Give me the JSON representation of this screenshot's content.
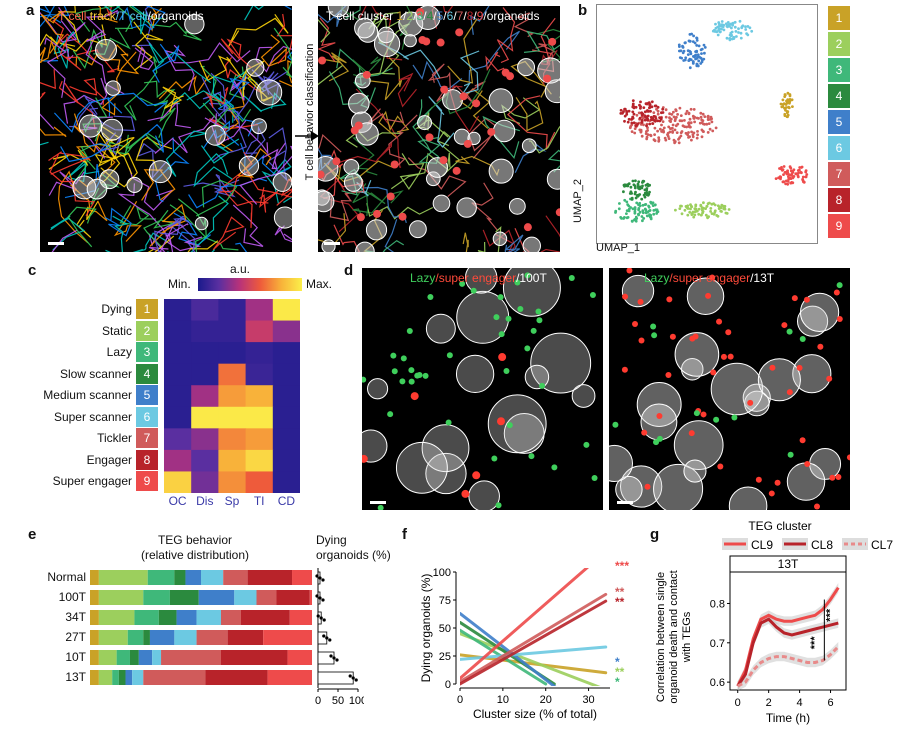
{
  "colors": {
    "c1": "#c9a227",
    "c2": "#9ccf5d",
    "c3": "#3fb87a",
    "c4": "#2b8a3e",
    "c5": "#3f7fca",
    "c6": "#6cc9e2",
    "c7": "#d05b5b",
    "c8": "#b8232a",
    "c9": "#ee4b4b"
  },
  "panel_a": {
    "label": "a",
    "left_title": "T cell track/T cell/organoids",
    "left_title_parts": [
      "T cell",
      " track",
      "/T cell",
      "/organoids"
    ],
    "arrow_label": "T cell behavior classification",
    "right_title_prefix": "T cell cluster ",
    "right_title_numbers": [
      "1",
      "2",
      "3",
      "4",
      "5",
      "6",
      "7",
      "8",
      "9"
    ],
    "right_title_suffix": "/organoids"
  },
  "panel_b": {
    "label": "b",
    "xlabel": "UMAP_1",
    "ylabel": "UMAP_2",
    "clusters": [
      "1",
      "2",
      "3",
      "4",
      "5",
      "6",
      "7",
      "8",
      "9"
    ]
  },
  "panel_c": {
    "label": "c",
    "scale_title": "a.u.",
    "scale_min": "Min.",
    "scale_max": "Max.",
    "rows": [
      "Dying",
      "Static",
      "Lazy",
      "Slow scanner",
      "Medium scanner",
      "Super scanner",
      "Tickler",
      "Engager",
      "Super engager"
    ],
    "numbers": [
      "1",
      "2",
      "3",
      "4",
      "5",
      "6",
      "7",
      "8",
      "9"
    ],
    "cols": [
      "OC",
      "Dis",
      "Sp",
      "TI",
      "CD"
    ]
  },
  "panel_d": {
    "label": "d",
    "left_title_parts": [
      "Lazy",
      "/super engager",
      "/100T"
    ],
    "right_title_parts": [
      "Lazy",
      "/super engager",
      "/13T"
    ]
  },
  "panel_e": {
    "label": "e",
    "title1": "TEG behavior",
    "title2": "(relative distribution)",
    "dying_title1": "Dying",
    "dying_title2": "organoids (%)",
    "rows": [
      "Normal",
      "100T",
      "34T",
      "27T",
      "10T",
      "13T"
    ],
    "x_ticks": [
      "0",
      "50",
      "100"
    ]
  },
  "panel_f": {
    "label": "f",
    "xlabel": "Cluster size (% of total)",
    "ylabel": "Dying organoids (%)",
    "sig": [
      "***",
      "**",
      "**",
      "*",
      "**",
      "*"
    ]
  },
  "panel_g": {
    "label": "g",
    "legend_title": "TEG cluster",
    "legend": [
      "CL9",
      "CL8",
      "CL7"
    ],
    "facet": "13T",
    "xlabel": "Time (h)",
    "ylabel_lines": [
      "Correlation between single",
      "organoid death and contact",
      "with TEGs"
    ],
    "sig": [
      "***",
      "***"
    ]
  },
  "chart_data": [
    {
      "type": "heatmap",
      "panel": "c",
      "rows": [
        "Dying",
        "Static",
        "Lazy",
        "Slow scanner",
        "Medium scanner",
        "Super scanner",
        "Tickler",
        "Engager",
        "Super engager"
      ],
      "cols": [
        "OC",
        "Dis",
        "Sp",
        "TI",
        "CD"
      ],
      "values": [
        [
          0.05,
          0.15,
          0.08,
          0.35,
          0.98
        ],
        [
          0.05,
          0.08,
          0.08,
          0.45,
          0.3
        ],
        [
          0.05,
          0.05,
          0.05,
          0.08,
          0.05
        ],
        [
          0.05,
          0.05,
          0.65,
          0.1,
          0.05
        ],
        [
          0.05,
          0.35,
          0.75,
          0.8,
          0.05
        ],
        [
          0.05,
          0.98,
          0.98,
          0.98,
          0.05
        ],
        [
          0.2,
          0.3,
          0.7,
          0.75,
          0.05
        ],
        [
          0.35,
          0.2,
          0.8,
          0.92,
          0.05
        ],
        [
          0.9,
          0.25,
          0.72,
          0.6,
          0.05
        ]
      ],
      "legend_min": "Min.",
      "legend_max": "Max."
    },
    {
      "type": "bar",
      "panel": "e",
      "stacked": true,
      "orientation": "horizontal",
      "categories": [
        "Normal",
        "100T",
        "34T",
        "27T",
        "10T",
        "13T"
      ],
      "series": [
        {
          "name": "1",
          "values": [
            4,
            4,
            4,
            4,
            4,
            4
          ]
        },
        {
          "name": "2",
          "values": [
            22,
            20,
            16,
            13,
            8,
            6
          ]
        },
        {
          "name": "3",
          "values": [
            12,
            12,
            11,
            7,
            6,
            3
          ]
        },
        {
          "name": "4",
          "values": [
            5,
            13,
            8,
            3,
            4,
            3
          ]
        },
        {
          "name": "5",
          "values": [
            7,
            16,
            9,
            11,
            6,
            3
          ]
        },
        {
          "name": "6",
          "values": [
            10,
            10,
            11,
            10,
            4,
            5
          ]
        },
        {
          "name": "7",
          "values": [
            11,
            9,
            9,
            14,
            27,
            28
          ]
        },
        {
          "name": "8",
          "values": [
            20,
            15,
            22,
            16,
            30,
            28
          ]
        },
        {
          "name": "9",
          "values": [
            9,
            1,
            10,
            22,
            11,
            20
          ]
        }
      ]
    },
    {
      "type": "bar",
      "panel": "e",
      "orientation": "horizontal",
      "categories": [
        "Normal",
        "100T",
        "34T",
        "27T",
        "10T",
        "13T"
      ],
      "values": [
        5,
        5,
        8,
        22,
        40,
        88
      ],
      "xlim": [
        0,
        100
      ],
      "xticks": [
        0,
        50,
        100
      ],
      "xlabel": "Dying organoids (%)"
    },
    {
      "type": "line",
      "panel": "f",
      "xlabel": "Cluster size (% of total)",
      "ylabel": "Dying organoids (%)",
      "xlim": [
        0,
        35
      ],
      "ylim": [
        0,
        100
      ],
      "xticks": [
        0,
        10,
        20,
        30
      ],
      "yticks": [
        0,
        25,
        50,
        75,
        100
      ],
      "series": [
        {
          "name": "1",
          "x": [
            0,
            34
          ],
          "y": [
            26,
            10
          ]
        },
        {
          "name": "2",
          "x": [
            0,
            34
          ],
          "y": [
            45,
            -5
          ]
        },
        {
          "name": "3",
          "x": [
            0,
            20
          ],
          "y": [
            48,
            0
          ]
        },
        {
          "name": "4",
          "x": [
            0,
            22
          ],
          "y": [
            55,
            0
          ]
        },
        {
          "name": "5",
          "x": [
            0,
            23
          ],
          "y": [
            63,
            -5
          ]
        },
        {
          "name": "6",
          "x": [
            0,
            34
          ],
          "y": [
            22,
            33
          ]
        },
        {
          "name": "7",
          "x": [
            0,
            34
          ],
          "y": [
            2,
            80
          ]
        },
        {
          "name": "8",
          "x": [
            0,
            34
          ],
          "y": [
            0,
            74
          ]
        },
        {
          "name": "9",
          "x": [
            0,
            30
          ],
          "y": [
            5,
            105
          ]
        }
      ]
    },
    {
      "type": "line",
      "panel": "g",
      "xlabel": "Time (h)",
      "xlim": [
        -0.5,
        7
      ],
      "ylim": [
        0.58,
        0.88
      ],
      "xticks": [
        0,
        2,
        4,
        6
      ],
      "yticks": [
        0.6,
        0.7,
        0.8
      ],
      "series": [
        {
          "name": "CL9",
          "x": [
            0,
            0.5,
            1,
            1.5,
            2,
            2.5,
            3,
            3.5,
            4,
            4.5,
            5,
            5.5,
            6,
            6.5
          ],
          "y": [
            0.59,
            0.63,
            0.71,
            0.76,
            0.77,
            0.76,
            0.755,
            0.755,
            0.76,
            0.765,
            0.77,
            0.785,
            0.81,
            0.84
          ]
        },
        {
          "name": "CL8",
          "x": [
            0,
            0.5,
            1,
            1.5,
            2,
            2.5,
            3,
            3.5,
            4,
            4.5,
            5,
            5.5,
            6,
            6.5
          ],
          "y": [
            0.59,
            0.62,
            0.7,
            0.75,
            0.76,
            0.74,
            0.725,
            0.72,
            0.725,
            0.73,
            0.735,
            0.74,
            0.745,
            0.75
          ]
        },
        {
          "name": "CL7",
          "x": [
            0,
            0.5,
            1,
            1.5,
            2,
            2.5,
            3,
            3.5,
            4,
            4.5,
            5,
            5.5,
            6,
            6.5
          ],
          "y": [
            0.59,
            0.6,
            0.63,
            0.65,
            0.66,
            0.665,
            0.665,
            0.66,
            0.655,
            0.65,
            0.65,
            0.655,
            0.67,
            0.69
          ]
        }
      ]
    }
  ]
}
